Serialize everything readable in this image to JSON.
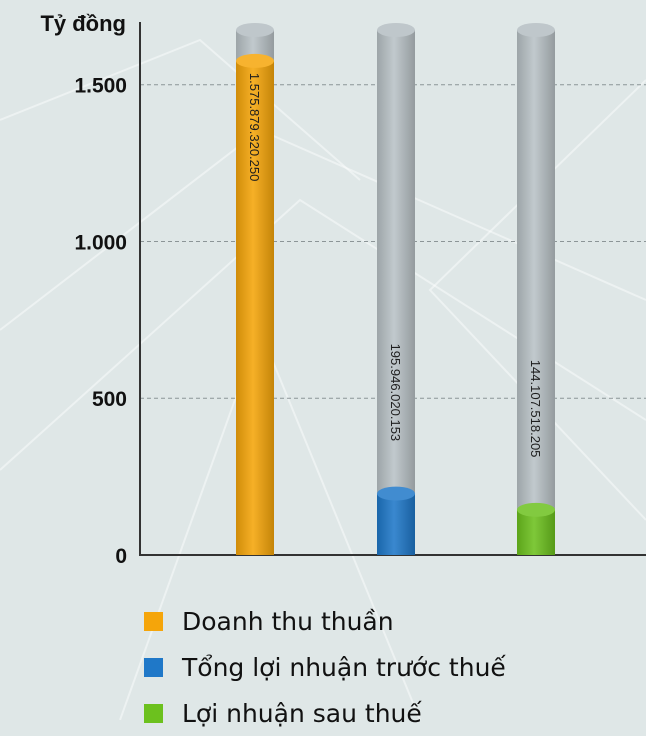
{
  "chart_data": {
    "type": "bar",
    "ylabel": "Tỷ đồng",
    "ylim": [
      0,
      1700
    ],
    "yticks": [
      {
        "value": 0,
        "label": "0"
      },
      {
        "value": 500,
        "label": "500"
      },
      {
        "value": 1000,
        "label": "1.000"
      },
      {
        "value": 1500,
        "label": "1.500"
      }
    ],
    "grid": "horizontal dashed",
    "legend_position": "bottom",
    "categories": [
      "Doanh thu thuần",
      "Tổng lợi nhuận trước thuế",
      "Lợi nhuận sau thuế"
    ],
    "values": [
      1575.87932025,
      195.946020153,
      144.107518205
    ],
    "data_labels": [
      "1.575.879.320.250",
      "195.946.020.153",
      "144.107.518.205"
    ],
    "colors": [
      "#f5a50a",
      "#1f78c8",
      "#6cc11e"
    ],
    "track_color": "#b9c2c6"
  }
}
